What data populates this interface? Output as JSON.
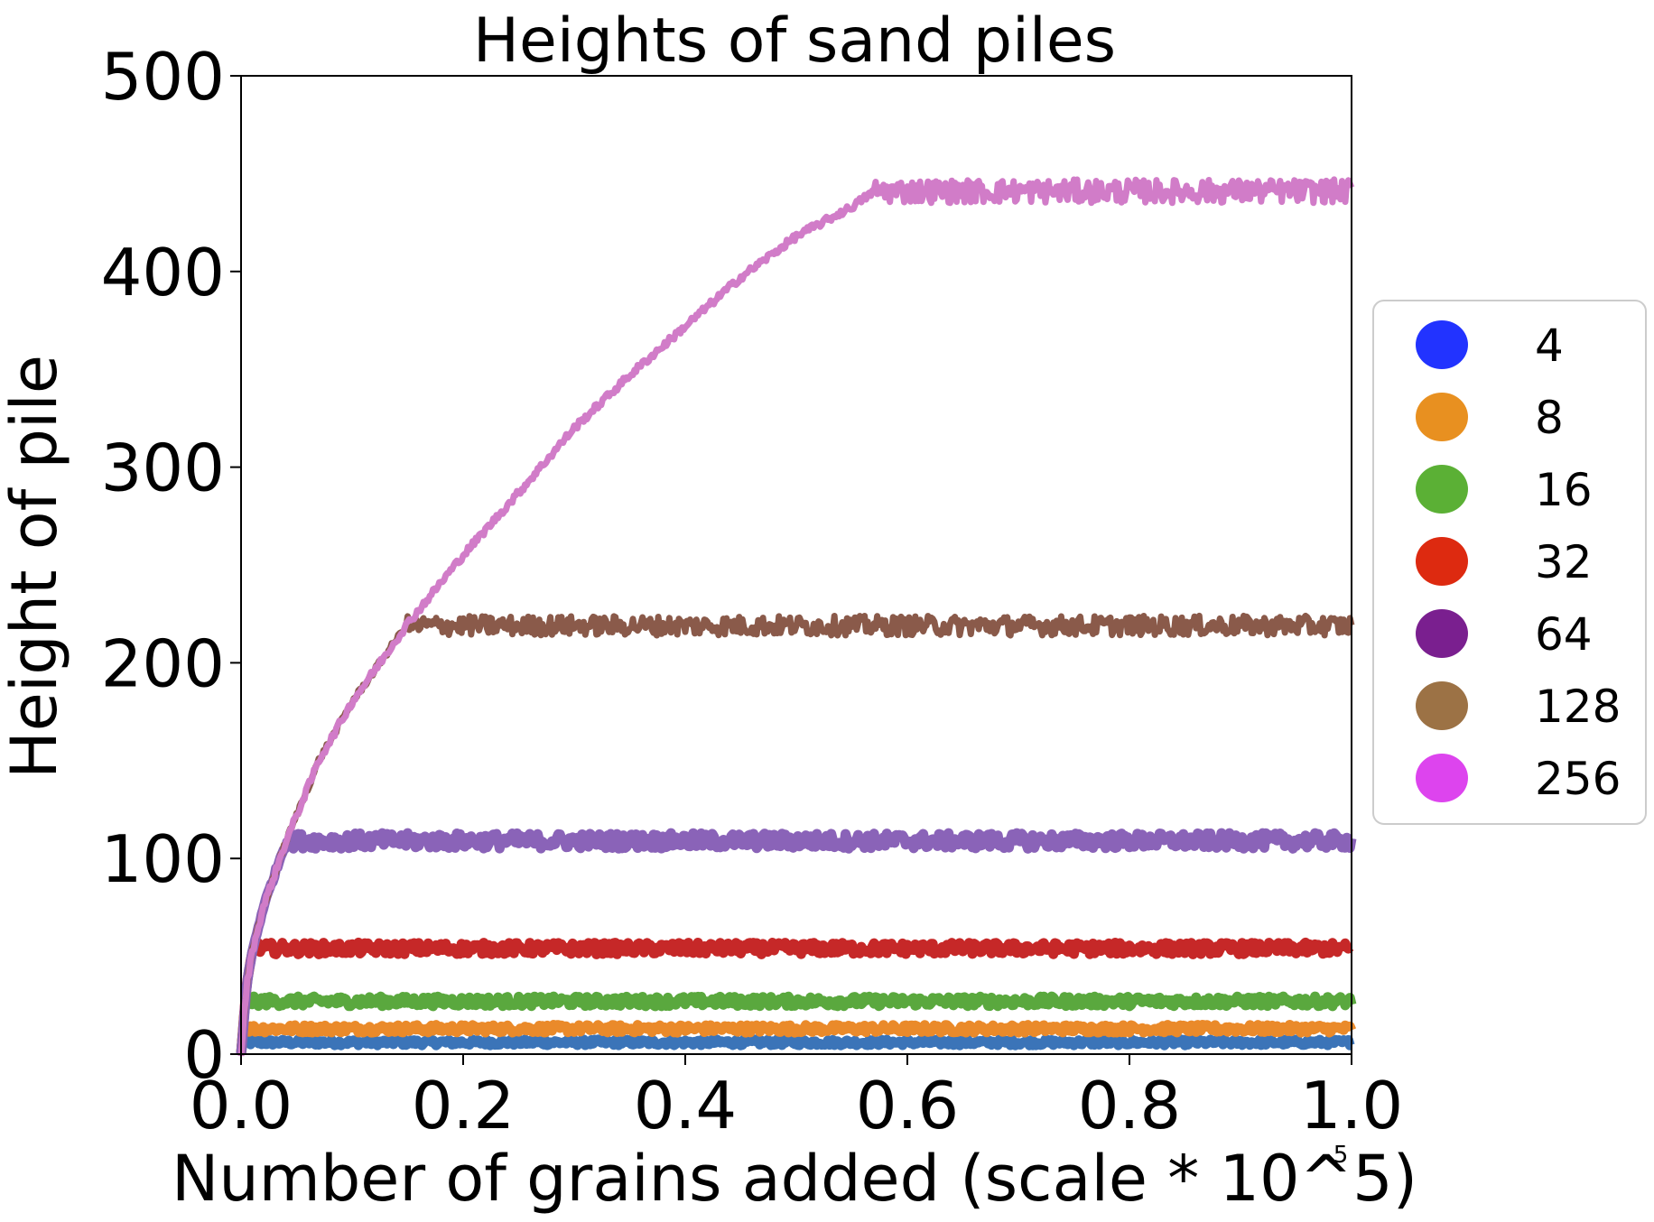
{
  "chart_data": {
    "type": "line",
    "title": "Heights of sand piles",
    "xlabel": "Number of grains added (scale * 10^5)",
    "ylabel": "Height of pile",
    "x_offset_text": "5",
    "xlim": [
      0.0,
      1.0
    ],
    "ylim": [
      0,
      500
    ],
    "xticks": [
      "0.0",
      "0.2",
      "0.4",
      "0.6",
      "0.8",
      "1.0"
    ],
    "yticks": [
      "0",
      "100",
      "200",
      "300",
      "400",
      "500"
    ],
    "legend_position": "center-right outside",
    "grid": false,
    "series": [
      {
        "name": "4",
        "legend_color": "#2233ff",
        "line_color": "#3b74b8",
        "saturation_x": 0.002,
        "plateau": 6
      },
      {
        "name": "8",
        "legend_color": "#e89020",
        "line_color": "#ea8a2a",
        "saturation_x": 0.004,
        "plateau": 13
      },
      {
        "name": "16",
        "legend_color": "#5bb035",
        "line_color": "#5aa83e",
        "saturation_x": 0.008,
        "plateau": 27
      },
      {
        "name": "32",
        "legend_color": "#dd2a10",
        "line_color": "#c62828",
        "saturation_x": 0.015,
        "plateau": 54
      },
      {
        "name": "64",
        "legend_color": "#7a1f8f",
        "line_color": "#8a63b8",
        "saturation_x": 0.04,
        "plateau": 109
      },
      {
        "name": "128",
        "legend_color": "#9c7245",
        "line_color": "#8a5a4a",
        "saturation_x": 0.15,
        "plateau": 219
      },
      {
        "name": "256",
        "legend_color": "#dd44ee",
        "line_color": "#d17cc8",
        "saturation_x": 0.57,
        "plateau": 441
      }
    ],
    "growth_curve": {
      "x": [
        0.0,
        0.005,
        0.01,
        0.02,
        0.04,
        0.07,
        0.1,
        0.15,
        0.2,
        0.25,
        0.3,
        0.35,
        0.4,
        0.45,
        0.5,
        0.55,
        0.57
      ],
      "y": [
        0,
        35,
        52,
        75,
        108,
        150,
        180,
        220,
        255,
        287,
        320,
        347,
        372,
        397,
        418,
        433,
        441
      ]
    },
    "noise_amplitude": [
      1.5,
      2,
      2.5,
      3,
      4,
      5,
      6
    ]
  }
}
